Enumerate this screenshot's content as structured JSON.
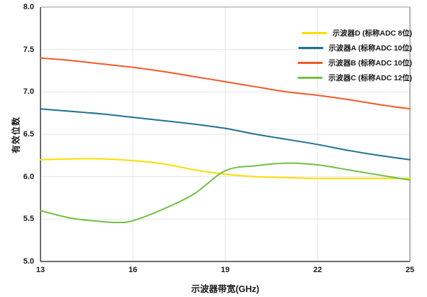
{
  "chart_data": {
    "type": "line",
    "title": "",
    "xlabel": "示波器带宽(GHz)",
    "ylabel": "有效位数",
    "xlim": [
      13,
      25
    ],
    "ylim": [
      5.0,
      8.0
    ],
    "x_ticks": [
      "13",
      "16",
      "19",
      "22",
      "25"
    ],
    "y_ticks": [
      "5.0",
      "5.5",
      "6.0",
      "6.5",
      "7.0",
      "7.5",
      "8.0"
    ],
    "grid": true,
    "legend_position": "top-right",
    "axis_color": "#3f3f3f",
    "frame_color": "#9a9a9a",
    "grid_color": "#e4e4e4",
    "series": [
      {
        "name": "示波器D (标称ADC 8位)",
        "color": "#ffdd00",
        "points": [
          [
            13,
            6.2
          ],
          [
            14,
            6.21
          ],
          [
            15,
            6.21
          ],
          [
            16,
            6.19
          ],
          [
            17,
            6.15
          ],
          [
            18,
            6.08
          ],
          [
            19,
            6.03
          ],
          [
            20,
            6.0
          ],
          [
            21,
            5.99
          ],
          [
            22,
            5.98
          ],
          [
            23,
            5.98
          ],
          [
            24,
            5.98
          ],
          [
            25,
            5.98
          ]
        ]
      },
      {
        "name": "示波器A (标称ADC 10位)",
        "color": "#1f7193",
        "points": [
          [
            13,
            6.8
          ],
          [
            14,
            6.77
          ],
          [
            15,
            6.74
          ],
          [
            16,
            6.7
          ],
          [
            17,
            6.66
          ],
          [
            18,
            6.62
          ],
          [
            19,
            6.57
          ],
          [
            20,
            6.5
          ],
          [
            21,
            6.44
          ],
          [
            22,
            6.38
          ],
          [
            23,
            6.31
          ],
          [
            24,
            6.25
          ],
          [
            25,
            6.2
          ]
        ]
      },
      {
        "name": "示波器B (标称ADC 10位)",
        "color": "#f15a29",
        "points": [
          [
            13,
            7.4
          ],
          [
            14,
            7.37
          ],
          [
            15,
            7.33
          ],
          [
            16,
            7.29
          ],
          [
            17,
            7.24
          ],
          [
            18,
            7.18
          ],
          [
            19,
            7.12
          ],
          [
            20,
            7.06
          ],
          [
            21,
            7.0
          ],
          [
            22,
            6.96
          ],
          [
            23,
            6.91
          ],
          [
            24,
            6.85
          ],
          [
            25,
            6.8
          ]
        ]
      },
      {
        "name": "示波器C (标称ADC 12位)",
        "color": "#72bf44",
        "points": [
          [
            13,
            5.6
          ],
          [
            14,
            5.51
          ],
          [
            15,
            5.47
          ],
          [
            15.5,
            5.46
          ],
          [
            16,
            5.48
          ],
          [
            17,
            5.62
          ],
          [
            18,
            5.8
          ],
          [
            19,
            6.07
          ],
          [
            20,
            6.13
          ],
          [
            21,
            6.16
          ],
          [
            22,
            6.14
          ],
          [
            23,
            6.08
          ],
          [
            24,
            6.02
          ],
          [
            25,
            5.96
          ]
        ]
      }
    ]
  }
}
